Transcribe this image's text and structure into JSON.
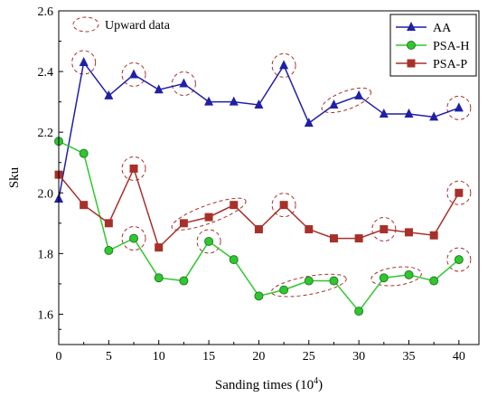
{
  "chart_data": {
    "type": "line",
    "title": "",
    "xlabel": "Sanding times (10",
    "xlabel_sup": "4",
    "xlabel_close": ")",
    "ylabel": "Sku",
    "xlim": [
      0,
      42
    ],
    "ylim": [
      1.5,
      2.6
    ],
    "x_ticks": [
      0,
      5,
      10,
      15,
      20,
      25,
      30,
      35,
      40
    ],
    "x_tick_labels": [
      "0",
      "5",
      "10",
      "15",
      "20",
      "25",
      "30",
      "35",
      "40"
    ],
    "y_ticks": [
      1.6,
      1.8,
      2.0,
      2.2,
      2.4,
      2.6
    ],
    "y_tick_labels": [
      "1.6",
      "1.8",
      "2.0",
      "2.2",
      "2.4",
      "2.6"
    ],
    "grid": false,
    "legend_position": "top-right",
    "x": [
      0,
      2.5,
      5,
      7.5,
      10,
      12.5,
      15,
      17.5,
      20,
      22.5,
      25,
      27.5,
      30,
      32.5,
      35,
      37.5,
      40
    ],
    "series": [
      {
        "name": "AA",
        "color": "#1f1fa8",
        "marker": "triangle",
        "values": [
          1.98,
          2.43,
          2.32,
          2.39,
          2.34,
          2.36,
          2.3,
          2.3,
          2.29,
          2.42,
          2.23,
          2.29,
          2.32,
          2.26,
          2.26,
          2.25,
          2.28
        ]
      },
      {
        "name": "PSA-H",
        "color": "#2ec82e",
        "marker": "circle",
        "values": [
          2.17,
          2.13,
          1.81,
          1.85,
          1.72,
          1.71,
          1.84,
          1.78,
          1.66,
          1.68,
          1.71,
          1.71,
          1.61,
          1.72,
          1.73,
          1.71,
          1.78
        ]
      },
      {
        "name": "PSA-P",
        "color": "#a8302a",
        "marker": "square",
        "values": [
          2.06,
          1.96,
          1.9,
          2.08,
          1.82,
          1.9,
          1.92,
          1.96,
          1.88,
          1.96,
          1.88,
          1.85,
          1.85,
          1.88,
          1.87,
          1.86,
          2.0
        ]
      }
    ],
    "annotation_label": "Upward data",
    "annotation_color": "#a8302a",
    "upward_highlights": [
      {
        "series": 0,
        "points": [
          1
        ]
      },
      {
        "series": 0,
        "points": [
          3
        ]
      },
      {
        "series": 0,
        "points": [
          5
        ]
      },
      {
        "series": 0,
        "points": [
          9
        ]
      },
      {
        "series": 0,
        "points": [
          11,
          12
        ]
      },
      {
        "series": 0,
        "points": [
          16
        ]
      },
      {
        "series": 1,
        "points": [
          3
        ]
      },
      {
        "series": 1,
        "points": [
          6
        ]
      },
      {
        "series": 1,
        "points": [
          9,
          10,
          11
        ]
      },
      {
        "series": 1,
        "points": [
          13,
          14
        ]
      },
      {
        "series": 1,
        "points": [
          16
        ]
      },
      {
        "series": 2,
        "points": [
          3
        ]
      },
      {
        "series": 2,
        "points": [
          5,
          6,
          7
        ]
      },
      {
        "series": 2,
        "points": [
          9
        ]
      },
      {
        "series": 2,
        "points": [
          13
        ]
      },
      {
        "series": 2,
        "points": [
          16
        ]
      }
    ]
  }
}
